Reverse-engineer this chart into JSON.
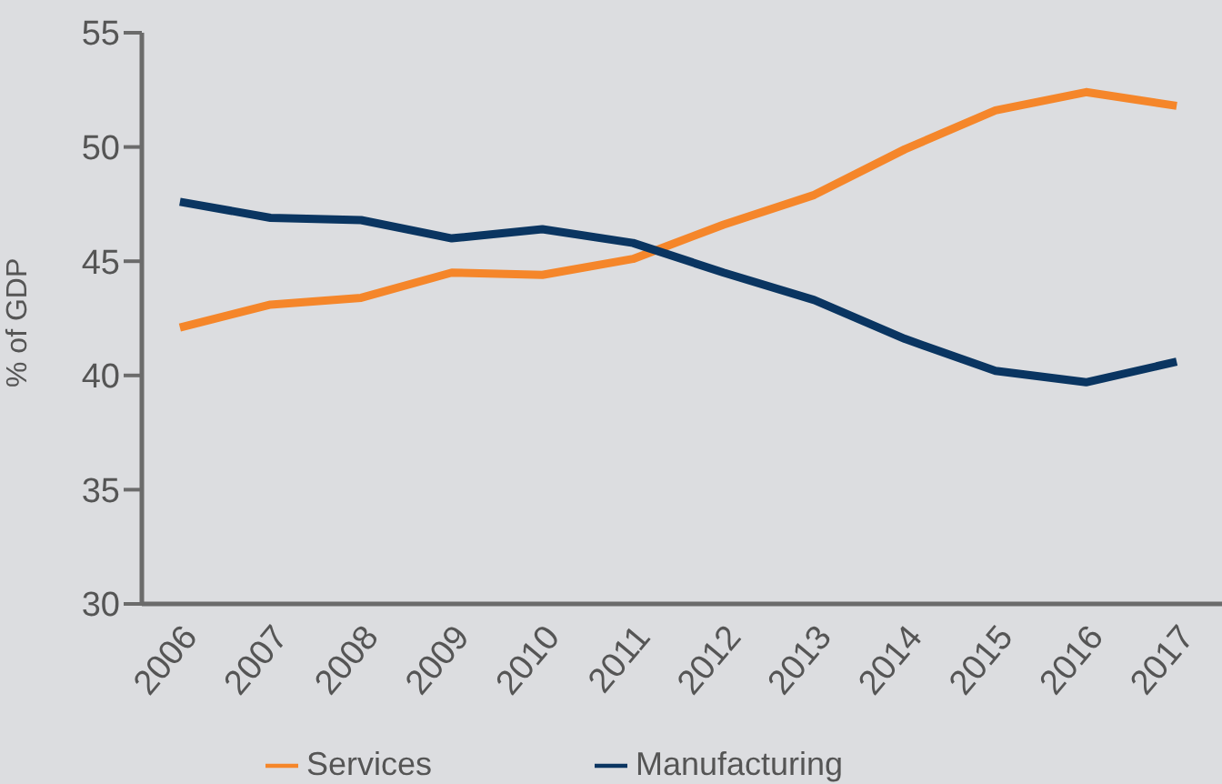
{
  "chart_data": {
    "type": "line",
    "ylabel": "% of GDP",
    "categories": [
      "2006",
      "2007",
      "2008",
      "2009",
      "2010",
      "2011",
      "2012",
      "2013",
      "2014",
      "2015",
      "2016",
      "2017"
    ],
    "series": [
      {
        "name": "Services",
        "color": "#f5862a",
        "values": [
          42.1,
          43.1,
          43.4,
          44.5,
          44.4,
          45.1,
          46.6,
          47.9,
          49.9,
          51.6,
          52.4,
          51.8
        ]
      },
      {
        "name": "Manufacturing",
        "color": "#0a3561",
        "values": [
          47.6,
          46.9,
          46.8,
          46.0,
          46.4,
          45.8,
          44.5,
          43.3,
          41.6,
          40.2,
          39.7,
          40.6
        ]
      }
    ],
    "ylim": [
      30,
      55
    ],
    "yticks": [
      30,
      35,
      40,
      45,
      50,
      55
    ],
    "grid": false,
    "legend": "bottom",
    "marker": "none",
    "line_style": "solid"
  }
}
